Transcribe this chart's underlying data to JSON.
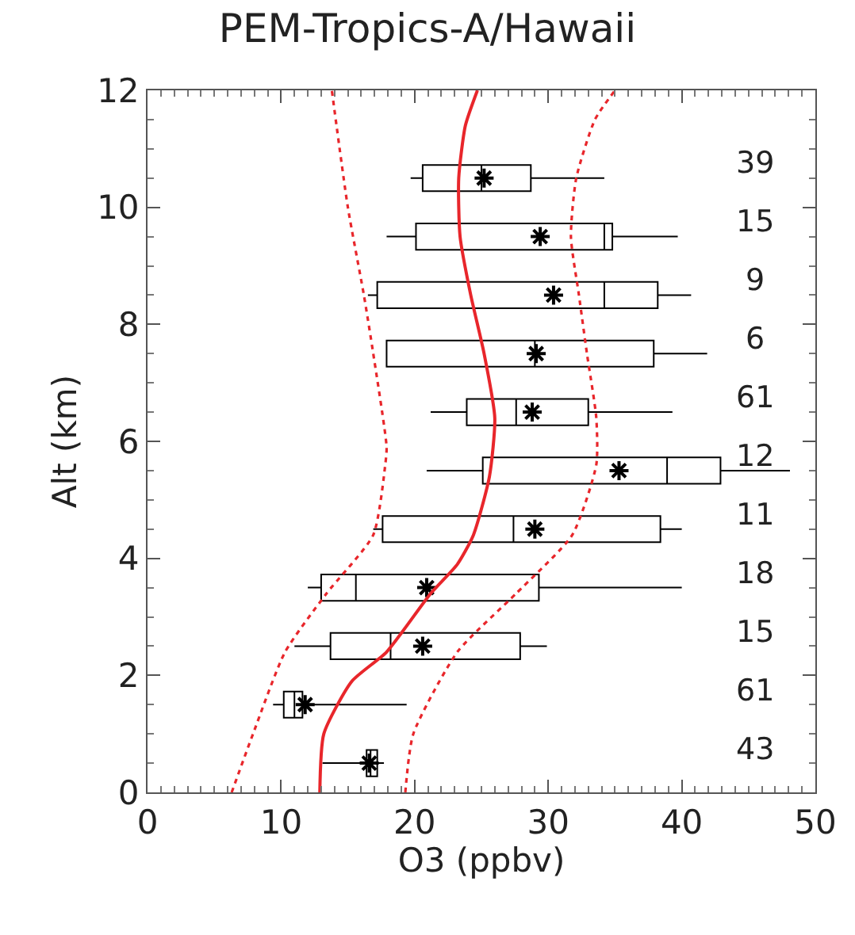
{
  "chart_data": {
    "type": "box",
    "title": "PEM-Tropics-A/Hawaii",
    "xlabel": "O3 (ppbv)",
    "ylabel": "Alt (km)",
    "orientation": "horizontal",
    "xlim": [
      0,
      50
    ],
    "xticks": [
      0,
      10,
      20,
      30,
      40,
      50
    ],
    "ylim": [
      0,
      12
    ],
    "yticks": [
      0,
      2,
      4,
      6,
      8,
      10,
      12
    ],
    "series": [
      {
        "color": "#000000",
        "marker": "star",
        "x": [
          0.5,
          1.5,
          2.5,
          3.5,
          4.5,
          5.5,
          6.5,
          7.5,
          8.5,
          9.5,
          10.5
        ],
        "value_labels": [
          "43",
          "61",
          "15",
          "18",
          "11",
          "12",
          "61",
          "6",
          "9",
          "15",
          "39"
        ],
        "boxes": [
          {
            "low": 13.1,
            "q1": 16.4,
            "median": 16.7,
            "q3": 17.2,
            "high": 17.7,
            "mean": 16.6
          },
          {
            "low": 9.4,
            "q1": 10.2,
            "median": 11.0,
            "q3": 11.6,
            "high": 19.4,
            "mean": 11.8
          },
          {
            "low": 11.0,
            "q1": 13.7,
            "median": 18.2,
            "q3": 27.9,
            "high": 29.9,
            "mean": 20.6
          },
          {
            "low": 12.0,
            "q1": 13.0,
            "median": 15.6,
            "q3": 29.3,
            "high": 40.0,
            "mean": 20.9
          },
          {
            "low": 16.9,
            "q1": 17.6,
            "median": 27.4,
            "q3": 38.4,
            "high": 40.0,
            "mean": 29.0
          },
          {
            "low": 20.9,
            "q1": 25.1,
            "median": 38.9,
            "q3": 42.9,
            "high": 48.1,
            "mean": 35.3
          },
          {
            "low": 21.2,
            "q1": 23.9,
            "median": 27.6,
            "q3": 33.0,
            "high": 39.3,
            "mean": 28.8
          },
          {
            "low": 17.9,
            "q1": 17.9,
            "median": 29.0,
            "q3": 37.9,
            "high": 41.9,
            "mean": 29.1
          },
          {
            "low": 16.5,
            "q1": 17.2,
            "median": 34.2,
            "q3": 38.2,
            "high": 40.7,
            "mean": 30.4
          },
          {
            "low": 17.9,
            "q1": 20.1,
            "median": 34.2,
            "q3": 34.8,
            "high": 39.7,
            "mean": 29.4
          },
          {
            "low": 19.7,
            "q1": 20.6,
            "median": 25.0,
            "q3": 28.7,
            "high": 34.2,
            "mean": 25.2
          }
        ]
      },
      {
        "type": "line",
        "color": "#e8262b",
        "line_style": "solid",
        "x": [
          0,
          1,
          1.9,
          2.4,
          3.4,
          3.9,
          4.4,
          5.4,
          6.4,
          7.5,
          8.5,
          9.5,
          10.5,
          11.4,
          12
        ],
        "values": [
          12.9,
          13.2,
          15.3,
          17.9,
          21.2,
          23.2,
          24.4,
          25.6,
          26.0,
          25.2,
          24.2,
          23.4,
          23.3,
          23.8,
          24.7
        ]
      },
      {
        "type": "line",
        "color": "#e8262b",
        "line_style": "dotted",
        "x": [
          0,
          1,
          2.4,
          3.4,
          4.4,
          5.6,
          5.9,
          7.5,
          8.5,
          10,
          12
        ],
        "values": [
          6.3,
          7.9,
          10.3,
          13.4,
          16.9,
          17.8,
          17.9,
          16.9,
          16.2,
          15.0,
          13.8
        ]
      },
      {
        "type": "line",
        "color": "#e8262b",
        "line_style": "dotted",
        "x": [
          0,
          1,
          2.4,
          3.4,
          4.4,
          5.6,
          6.4,
          7.5,
          8.5,
          9.5,
          10.5,
          11.5,
          12
        ],
        "values": [
          19.3,
          19.9,
          23.2,
          27.6,
          31.8,
          33.6,
          33.6,
          32.9,
          32.3,
          31.7,
          32.1,
          33.5,
          35.0
        ]
      }
    ]
  }
}
